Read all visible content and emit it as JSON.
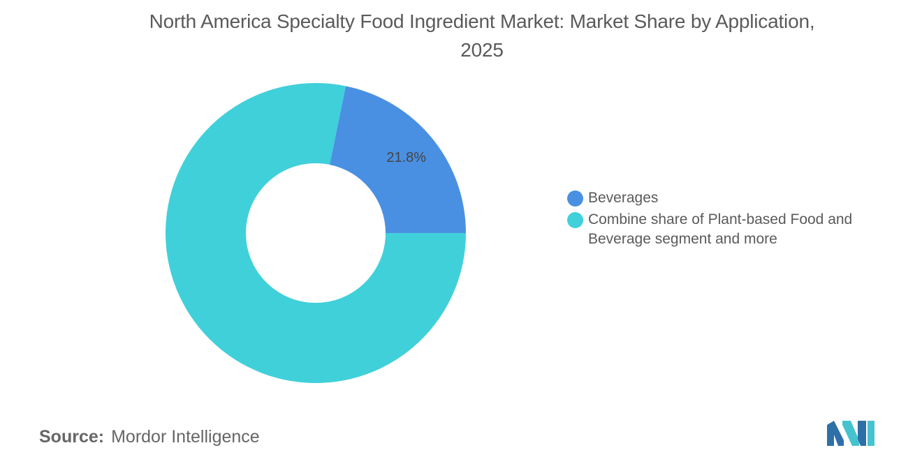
{
  "chart_data": {
    "type": "pie",
    "variant": "donut",
    "title": "North America Specialty Food Ingredient Market: Market Share by Application, 2025",
    "categories": [
      "Beverages",
      "Combine share of Plant-based Food and Beverage segment and more"
    ],
    "values": [
      21.8,
      78.2
    ],
    "unit": "%",
    "data_labels": [
      "21.8%",
      ""
    ],
    "colors": [
      "#4a90e2",
      "#40d0da"
    ],
    "legend_position": "right"
  },
  "source": {
    "label": "Source:",
    "value": "Mordor Intelligence"
  },
  "logo": {
    "icon": "mordor-intelligence-logo-icon",
    "colors": [
      "#2f6fa8",
      "#45c4d0"
    ]
  }
}
